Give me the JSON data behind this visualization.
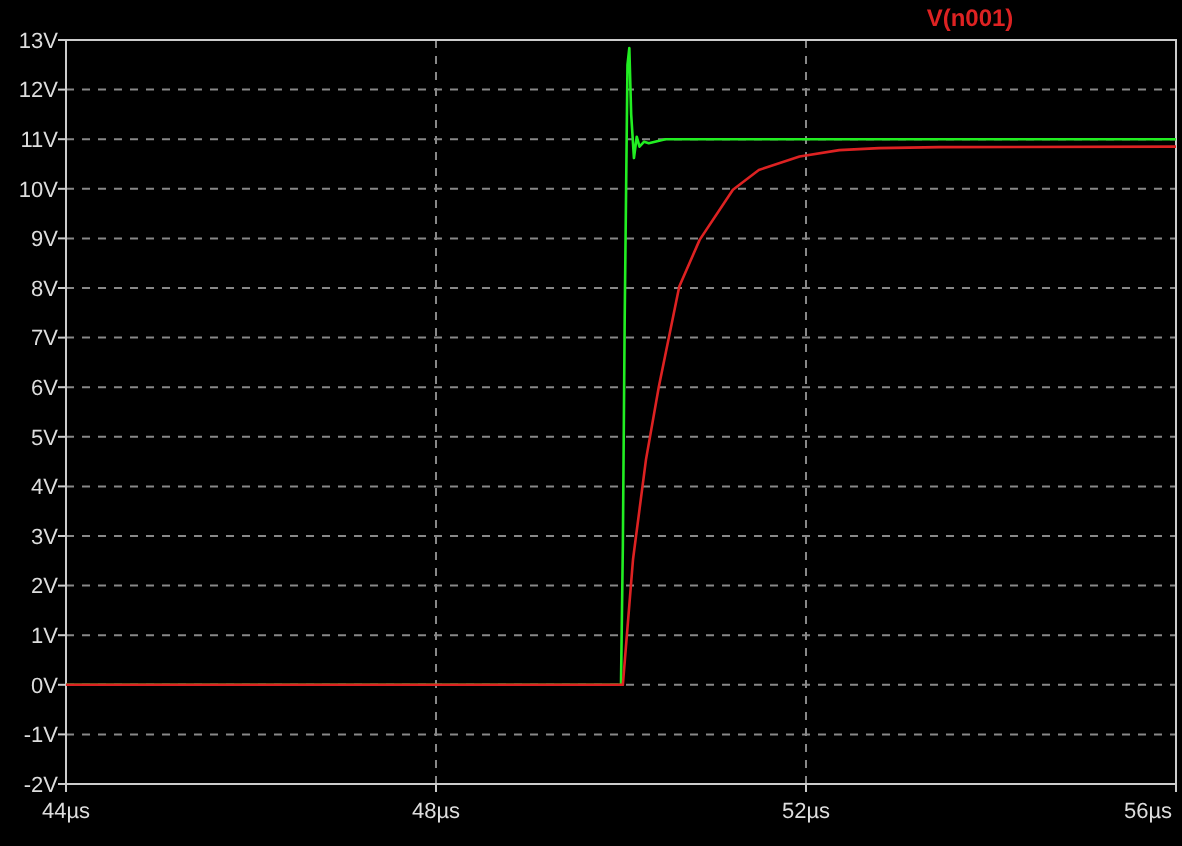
{
  "chart_data": {
    "type": "line",
    "xlim": [
      44,
      56
    ],
    "xticks": [
      {
        "value": 44,
        "label": "44µs"
      },
      {
        "value": 48,
        "label": "48µs"
      },
      {
        "value": 52,
        "label": "52µs"
      },
      {
        "value": 56,
        "label": "56µs"
      }
    ],
    "ylim": [
      -2,
      13
    ],
    "yticks": [
      {
        "value": -2,
        "label": "-2V"
      },
      {
        "value": -1,
        "label": "-1V"
      },
      {
        "value": 0,
        "label": "0V"
      },
      {
        "value": 1,
        "label": "1V"
      },
      {
        "value": 2,
        "label": "2V"
      },
      {
        "value": 3,
        "label": "3V"
      },
      {
        "value": 4,
        "label": "4V"
      },
      {
        "value": 5,
        "label": "5V"
      },
      {
        "value": 6,
        "label": "6V"
      },
      {
        "value": 7,
        "label": "7V"
      },
      {
        "value": 8,
        "label": "8V"
      },
      {
        "value": 9,
        "label": "9V"
      },
      {
        "value": 10,
        "label": "10V"
      },
      {
        "value": 11,
        "label": "11V"
      },
      {
        "value": 12,
        "label": "12V"
      },
      {
        "value": 13,
        "label": "13V"
      }
    ],
    "grid": true,
    "legend": "top",
    "line_style": "solid",
    "series": [
      {
        "color": "#22ee22",
        "x": [
          44,
          50.0,
          50.02,
          50.04,
          50.07,
          50.09,
          50.11,
          50.14,
          50.17,
          50.2,
          50.25,
          50.3,
          50.48,
          56
        ],
        "values": [
          0,
          0,
          2.8,
          7.4,
          12.5,
          12.84,
          11.5,
          10.62,
          11.05,
          10.85,
          10.95,
          10.92,
          11.0,
          11.0
        ]
      },
      {
        "name": "V(n001)",
        "color": "#dd2222",
        "x": [
          44,
          50.02,
          50.13,
          50.27,
          50.41,
          50.63,
          50.85,
          51.21,
          51.49,
          51.93,
          52.36,
          52.79,
          53.44,
          56
        ],
        "values": [
          0,
          0,
          2.53,
          4.54,
          6.02,
          8.03,
          8.97,
          9.98,
          10.38,
          10.65,
          10.78,
          10.82,
          10.84,
          10.85
        ]
      }
    ]
  }
}
